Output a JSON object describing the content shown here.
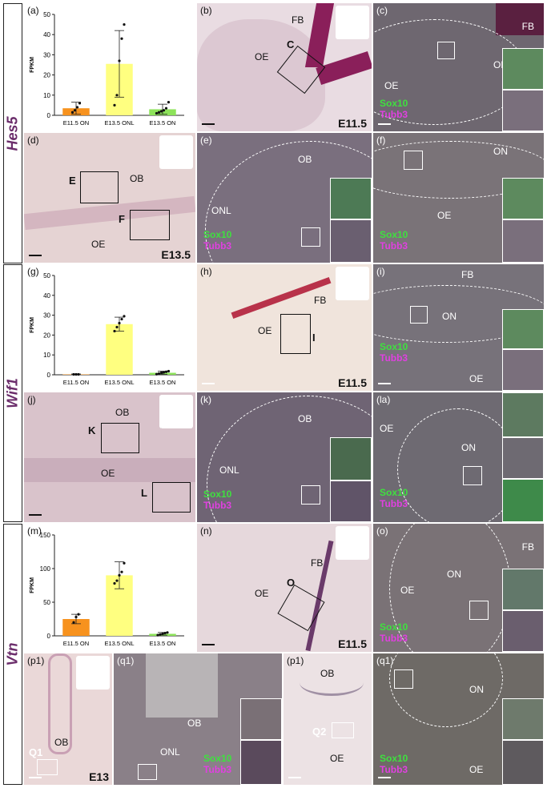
{
  "rows": [
    {
      "gene": "Hes5"
    },
    {
      "gene": "Wif1"
    },
    {
      "gene": "Vtn"
    }
  ],
  "labels": {
    "a": "(a)",
    "b": "(b)",
    "c": "(c)",
    "d": "(d)",
    "e": "(e)",
    "f": "(f)",
    "g": "(g)",
    "h": "(h)",
    "i": "(i)",
    "j": "(j)",
    "k": "(k)",
    "la": "(la)",
    "m": "(m)",
    "n": "(n)",
    "o": "(o)",
    "p1a": "(p1)",
    "q1a": "(q1)",
    "p1b": "(p1)",
    "q1b": "(q1)"
  },
  "tissue": {
    "FB": "FB",
    "OE": "OE",
    "ON": "ON",
    "OB": "OB",
    "ONL": "ONL",
    "C": "C",
    "E": "E",
    "F": "F",
    "I": "I",
    "K": "K",
    "L": "L",
    "O": "O",
    "Q1": "Q1",
    "Q2": "Q2"
  },
  "ages": {
    "e115": "E11.5",
    "e135": "E13.5",
    "e13": "E13"
  },
  "stains": {
    "sox10": "Sox10",
    "tubb3": "Tubb3"
  },
  "colors": {
    "orange": "#f7921e",
    "yellow": "#ffff80",
    "green": "#8de35a"
  },
  "chart_data": [
    {
      "type": "bar",
      "ylabel": "FPKM",
      "categories": [
        "E11.5 ON",
        "E13.5 ONL",
        "E13.5 ON"
      ],
      "values": [
        3.5,
        25.5,
        3
      ],
      "error": [
        3,
        16.5,
        2.5
      ],
      "ylim": [
        0,
        50
      ],
      "yticks": [
        "0",
        "10",
        "20",
        "30",
        "40",
        "50"
      ],
      "points": [
        [
          1.5,
          2.5,
          4,
          6
        ],
        [
          5,
          10,
          27,
          38,
          45
        ],
        [
          1,
          1.5,
          2,
          2.5,
          3.5,
          6.5
        ]
      ]
    },
    {
      "type": "bar",
      "ylabel": "FPKM",
      "categories": [
        "E11.5 ON",
        "E13.5 ONL",
        "E13.5 ON"
      ],
      "values": [
        0.2,
        25.5,
        1
      ],
      "error": [
        0.2,
        3.5,
        0.8
      ],
      "ylim": [
        0,
        50
      ],
      "yticks": [
        "0",
        "10",
        "20",
        "30",
        "40",
        "50"
      ],
      "points": [
        [
          0.2,
          0.2,
          0.2
        ],
        [
          22,
          24,
          26,
          28,
          29.5
        ],
        [
          0.3,
          0.6,
          1,
          1.2,
          1.5,
          1.8
        ]
      ]
    },
    {
      "type": "bar",
      "ylabel": "FPKM",
      "categories": [
        "E11.5 ON",
        "E13.5 ONL",
        "E13.5 ON"
      ],
      "values": [
        25,
        90,
        3
      ],
      "error": [
        7,
        20,
        2
      ],
      "ylim": [
        0,
        150
      ],
      "yticks": [
        "0",
        "50",
        "100",
        "150"
      ],
      "points": [
        [
          20,
          28,
          32
        ],
        [
          78,
          82,
          90,
          95,
          108
        ],
        [
          1,
          2,
          3,
          4,
          5
        ]
      ]
    }
  ]
}
